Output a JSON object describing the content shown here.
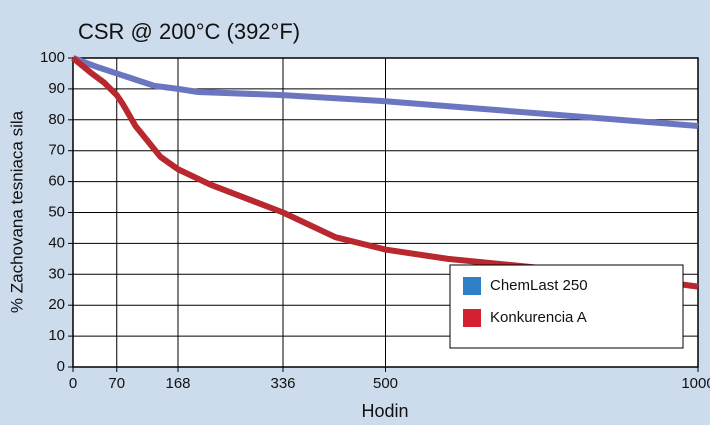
{
  "chart_data": {
    "type": "line",
    "title": "CSR @ 200°C (392°F)",
    "x_label": "Hodin",
    "y_label": "% Zachovana tesniaca sila",
    "xlim": [
      0,
      1000
    ],
    "xticks": [
      0,
      70,
      168,
      336,
      500,
      1000
    ],
    "ylim": [
      0,
      100
    ],
    "yticks": [
      0,
      10,
      20,
      30,
      40,
      50,
      60,
      70,
      80,
      90,
      100
    ],
    "grid": true,
    "legend": "lower right",
    "series": [
      {
        "name": "ChemLast 250",
        "color": "#6a76c0",
        "legend_color": "#2f7fc6",
        "x": [
          0,
          40,
          70,
          100,
          130,
          168,
          200,
          336,
          500,
          750,
          1000
        ],
        "values": [
          100,
          97,
          95,
          93,
          91,
          90,
          89,
          88,
          86,
          82,
          78
        ]
      },
      {
        "name": "Konkurencia A",
        "color": "#b8282e",
        "legend_color": "#d42031",
        "x": [
          0,
          30,
          50,
          70,
          80,
          100,
          140,
          168,
          220,
          336,
          420,
          500,
          600,
          700,
          850,
          1000
        ],
        "values": [
          100,
          95,
          92,
          88,
          85,
          78,
          68,
          64,
          59,
          50,
          42,
          38,
          35,
          33,
          30,
          26
        ]
      }
    ]
  }
}
